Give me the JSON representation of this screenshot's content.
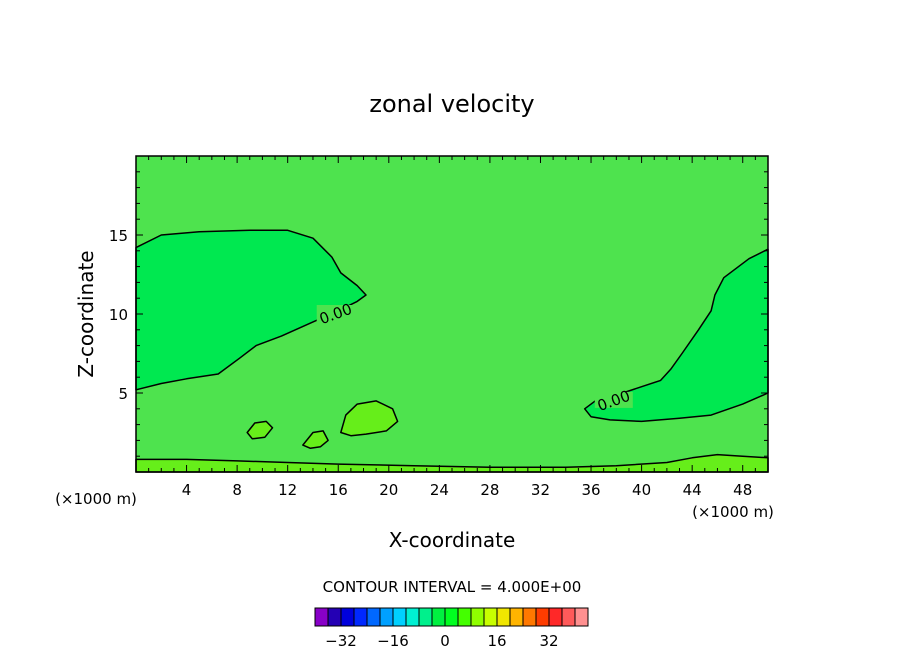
{
  "chart_data": {
    "type": "contour",
    "title": "zonal velocity",
    "xlabel": "X-coordinate",
    "ylabel": "Z-coordinate",
    "x_unit_left": "(×1000 m)",
    "x_unit_right": "(×1000 m)",
    "xlim": [
      0,
      50
    ],
    "ylim": [
      0,
      20
    ],
    "xticks": [
      4,
      8,
      12,
      16,
      20,
      24,
      28,
      32,
      36,
      40,
      44,
      48
    ],
    "yticks": [
      5,
      10,
      15
    ],
    "grid": false,
    "contour_interval_text": "CONTOUR INTERVAL = 4.000E+00",
    "contour_labels": [
      {
        "text": "0.00",
        "x": 15.8,
        "z": 10.0
      },
      {
        "text": "0.00",
        "x": 37.8,
        "z": 4.5
      }
    ],
    "regions": [
      {
        "name": "negative-region-left",
        "level": -4,
        "points": [
          [
            0,
            14.2
          ],
          [
            2,
            15.0
          ],
          [
            5,
            15.2
          ],
          [
            9,
            15.3
          ],
          [
            12,
            15.3
          ],
          [
            14,
            14.8
          ],
          [
            15.5,
            13.6
          ],
          [
            16.2,
            12.6
          ],
          [
            17.5,
            11.8
          ],
          [
            18.2,
            11.2
          ],
          [
            17.5,
            10.8
          ],
          [
            16,
            10.2
          ],
          [
            14,
            9.5
          ],
          [
            11.5,
            8.6
          ],
          [
            9.5,
            8.0
          ],
          [
            8.2,
            7.2
          ],
          [
            6.5,
            6.2
          ],
          [
            4,
            5.9
          ],
          [
            2,
            5.6
          ],
          [
            0,
            5.2
          ]
        ]
      },
      {
        "name": "negative-region-right",
        "level": -4,
        "points": [
          [
            50,
            14.1
          ],
          [
            48.5,
            13.5
          ],
          [
            46.5,
            12.3
          ],
          [
            45.8,
            11.2
          ],
          [
            45.5,
            10.2
          ],
          [
            44.5,
            9.0
          ],
          [
            43.2,
            7.5
          ],
          [
            42.3,
            6.5
          ],
          [
            41.5,
            5.8
          ],
          [
            40,
            5.4
          ],
          [
            38.5,
            5.0
          ],
          [
            36.5,
            4.6
          ],
          [
            35.5,
            4.0
          ],
          [
            36,
            3.5
          ],
          [
            37.5,
            3.3
          ],
          [
            40,
            3.2
          ],
          [
            43,
            3.4
          ],
          [
            45.5,
            3.6
          ],
          [
            48,
            4.3
          ],
          [
            50,
            5.0
          ]
        ]
      },
      {
        "name": "positive-blob-1",
        "level": 4,
        "points": [
          [
            16.2,
            2.5
          ],
          [
            16.6,
            3.6
          ],
          [
            17.5,
            4.3
          ],
          [
            19,
            4.5
          ],
          [
            20.3,
            4.0
          ],
          [
            20.7,
            3.2
          ],
          [
            19.8,
            2.6
          ],
          [
            18.2,
            2.4
          ],
          [
            17,
            2.3
          ]
        ]
      },
      {
        "name": "positive-blob-2",
        "level": 4,
        "points": [
          [
            8.8,
            2.5
          ],
          [
            9.4,
            3.1
          ],
          [
            10.3,
            3.2
          ],
          [
            10.8,
            2.8
          ],
          [
            10.2,
            2.2
          ],
          [
            9.2,
            2.1
          ]
        ]
      },
      {
        "name": "positive-blob-3",
        "level": 4,
        "points": [
          [
            13.2,
            1.7
          ],
          [
            14,
            2.5
          ],
          [
            14.8,
            2.6
          ],
          [
            15.2,
            2.0
          ],
          [
            14.6,
            1.6
          ],
          [
            13.8,
            1.5
          ]
        ]
      },
      {
        "name": "positive-band-bottom",
        "level": 4,
        "points": [
          [
            0,
            0.8
          ],
          [
            4,
            0.8
          ],
          [
            8,
            0.7
          ],
          [
            12,
            0.6
          ],
          [
            16,
            0.5
          ],
          [
            22,
            0.4
          ],
          [
            28,
            0.3
          ],
          [
            34,
            0.3
          ],
          [
            38,
            0.4
          ],
          [
            42,
            0.6
          ],
          [
            44,
            0.9
          ],
          [
            46,
            1.1
          ],
          [
            48,
            1.0
          ],
          [
            50,
            0.9
          ],
          [
            50,
            0
          ],
          [
            0,
            0
          ]
        ]
      }
    ],
    "colorbar": {
      "colors": [
        "#8800c8",
        "#2400b4",
        "#0000dc",
        "#0028ff",
        "#0068ff",
        "#00a0ff",
        "#00d0ff",
        "#00f0d2",
        "#00f08c",
        "#00f040",
        "#00ff20",
        "#44ff00",
        "#90ff00",
        "#c8ff00",
        "#f0e600",
        "#ffb400",
        "#ff7800",
        "#ff3c00",
        "#ff2828",
        "#ff5a5a",
        "#ff9090"
      ],
      "tick_labels": [
        "-32",
        "-16",
        "0",
        "16",
        "32"
      ],
      "tick_values": [
        -32,
        -16,
        0,
        16,
        32
      ],
      "min": -40,
      "max": 44
    },
    "colors": {
      "background_field": "#4ee34e",
      "negative_field": "#00e850",
      "positive_field": "#66ee1a",
      "contour_line": "#000000"
    }
  }
}
